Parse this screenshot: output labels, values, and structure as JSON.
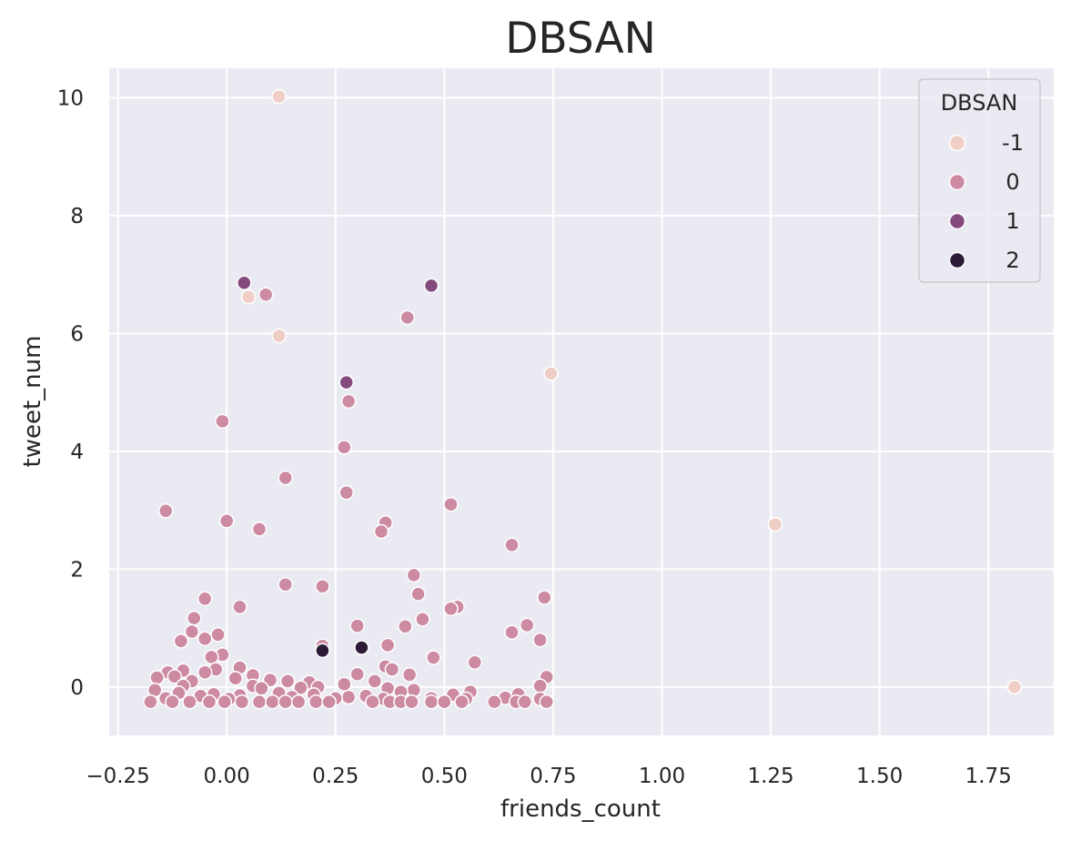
{
  "chart_data": {
    "type": "scatter",
    "title": "DBSAN",
    "xlabel": "friends_count",
    "ylabel": "tweet_num",
    "xlim": [
      -0.27,
      1.9
    ],
    "ylim": [
      -0.82,
      10.5
    ],
    "x_ticks": [
      -0.25,
      0.0,
      0.25,
      0.5,
      0.75,
      1.0,
      1.25,
      1.5,
      1.75
    ],
    "x_tick_labels": [
      "−0.25",
      "0.00",
      "0.25",
      "0.50",
      "0.75",
      "1.00",
      "1.25",
      "1.50",
      "1.75"
    ],
    "y_ticks": [
      0,
      2,
      4,
      6,
      8,
      10
    ],
    "y_tick_labels": [
      "0",
      "2",
      "4",
      "6",
      "8",
      "10"
    ],
    "grid": true,
    "background": "#eaeaf2",
    "legend": {
      "title": "DBSAN",
      "placement": "top-right",
      "entries": [
        {
          "label": "-1",
          "color": "#efcec6"
        },
        {
          "label": "0",
          "color": "#cc8aa3"
        },
        {
          "label": "1",
          "color": "#844a7e"
        },
        {
          "label": "2",
          "color": "#2c1a37"
        }
      ]
    },
    "series": [
      {
        "name": "-1",
        "color": "#efcec6",
        "points": [
          [
            0.12,
            10.02
          ],
          [
            0.05,
            6.62
          ],
          [
            0.12,
            5.96
          ],
          [
            0.745,
            5.32
          ],
          [
            1.26,
            2.76
          ],
          [
            1.81,
            0.0
          ]
        ]
      },
      {
        "name": "0",
        "color": "#cc8aa3",
        "points": [
          [
            0.09,
            6.66
          ],
          [
            0.415,
            6.27
          ],
          [
            0.28,
            4.85
          ],
          [
            -0.01,
            4.51
          ],
          [
            0.27,
            4.07
          ],
          [
            0.135,
            3.55
          ],
          [
            0.275,
            3.3
          ],
          [
            0.515,
            3.1
          ],
          [
            -0.14,
            2.99
          ],
          [
            0.0,
            2.82
          ],
          [
            0.365,
            2.79
          ],
          [
            0.075,
            2.68
          ],
          [
            0.355,
            2.64
          ],
          [
            0.655,
            2.41
          ],
          [
            0.43,
            1.9
          ],
          [
            0.135,
            1.74
          ],
          [
            0.22,
            1.71
          ],
          [
            0.44,
            1.58
          ],
          [
            0.73,
            1.52
          ],
          [
            -0.05,
            1.5
          ],
          [
            0.03,
            1.36
          ],
          [
            0.53,
            1.36
          ],
          [
            0.515,
            1.33
          ],
          [
            -0.075,
            1.17
          ],
          [
            0.45,
            1.15
          ],
          [
            0.69,
            1.05
          ],
          [
            0.3,
            1.04
          ],
          [
            0.41,
            1.03
          ],
          [
            0.655,
            0.93
          ],
          [
            -0.08,
            0.94
          ],
          [
            -0.02,
            0.89
          ],
          [
            -0.05,
            0.82
          ],
          [
            -0.105,
            0.78
          ],
          [
            0.72,
            0.8
          ],
          [
            0.22,
            0.7
          ],
          [
            0.37,
            0.71
          ],
          [
            -0.01,
            0.55
          ],
          [
            -0.035,
            0.51
          ],
          [
            0.475,
            0.5
          ],
          [
            0.57,
            0.42
          ],
          [
            -0.025,
            0.3
          ],
          [
            0.365,
            0.35
          ],
          [
            0.38,
            0.3
          ],
          [
            0.03,
            0.33
          ],
          [
            -0.05,
            0.25
          ],
          [
            0.3,
            0.22
          ],
          [
            0.42,
            0.21
          ],
          [
            0.735,
            0.17
          ],
          [
            -0.135,
            0.25
          ],
          [
            -0.1,
            0.28
          ],
          [
            0.06,
            0.2
          ],
          [
            -0.16,
            0.16
          ],
          [
            -0.12,
            0.18
          ],
          [
            0.02,
            0.15
          ],
          [
            0.1,
            0.12
          ],
          [
            0.14,
            0.1
          ],
          [
            0.19,
            0.08
          ],
          [
            0.34,
            0.1
          ],
          [
            0.27,
            0.05
          ],
          [
            -0.08,
            0.1
          ],
          [
            -0.1,
            0.02
          ],
          [
            0.06,
            0.02
          ],
          [
            0.21,
            0.0
          ],
          [
            0.72,
            0.02
          ],
          [
            -0.165,
            -0.05
          ],
          [
            0.08,
            -0.02
          ],
          [
            0.17,
            -0.01
          ],
          [
            0.37,
            -0.02
          ],
          [
            0.43,
            -0.05
          ],
          [
            0.56,
            -0.08
          ],
          [
            0.67,
            -0.12
          ],
          [
            -0.11,
            -0.1
          ],
          [
            -0.03,
            -0.12
          ],
          [
            0.12,
            -0.1
          ],
          [
            0.2,
            -0.13
          ],
          [
            0.32,
            -0.15
          ],
          [
            0.4,
            -0.08
          ],
          [
            0.52,
            -0.13
          ],
          [
            0.64,
            -0.18
          ],
          [
            0.72,
            -0.2
          ],
          [
            -0.06,
            -0.15
          ],
          [
            0.03,
            -0.14
          ],
          [
            0.15,
            -0.17
          ],
          [
            0.28,
            -0.17
          ],
          [
            0.36,
            -0.2
          ],
          [
            0.55,
            -0.2
          ],
          [
            0.47,
            -0.19
          ],
          [
            0.005,
            -0.2
          ],
          [
            0.25,
            -0.19
          ],
          [
            -0.14,
            -0.19
          ],
          [
            -0.175,
            -0.25
          ],
          [
            -0.125,
            -0.25
          ],
          [
            -0.085,
            -0.25
          ],
          [
            -0.04,
            -0.25
          ],
          [
            -0.005,
            -0.25
          ],
          [
            0.035,
            -0.25
          ],
          [
            0.075,
            -0.25
          ],
          [
            0.105,
            -0.25
          ],
          [
            0.135,
            -0.25
          ],
          [
            0.165,
            -0.25
          ],
          [
            0.205,
            -0.25
          ],
          [
            0.235,
            -0.25
          ],
          [
            0.335,
            -0.25
          ],
          [
            0.375,
            -0.25
          ],
          [
            0.4,
            -0.25
          ],
          [
            0.425,
            -0.25
          ],
          [
            0.47,
            -0.25
          ],
          [
            0.5,
            -0.25
          ],
          [
            0.54,
            -0.25
          ],
          [
            0.615,
            -0.25
          ],
          [
            0.665,
            -0.25
          ],
          [
            0.685,
            -0.25
          ],
          [
            0.735,
            -0.25
          ]
        ]
      },
      {
        "name": "1",
        "color": "#844a7e",
        "points": [
          [
            0.04,
            6.86
          ],
          [
            0.47,
            6.81
          ],
          [
            0.275,
            5.17
          ]
        ]
      },
      {
        "name": "2",
        "color": "#2c1a37",
        "points": [
          [
            0.22,
            0.62
          ],
          [
            0.31,
            0.67
          ]
        ]
      }
    ]
  }
}
